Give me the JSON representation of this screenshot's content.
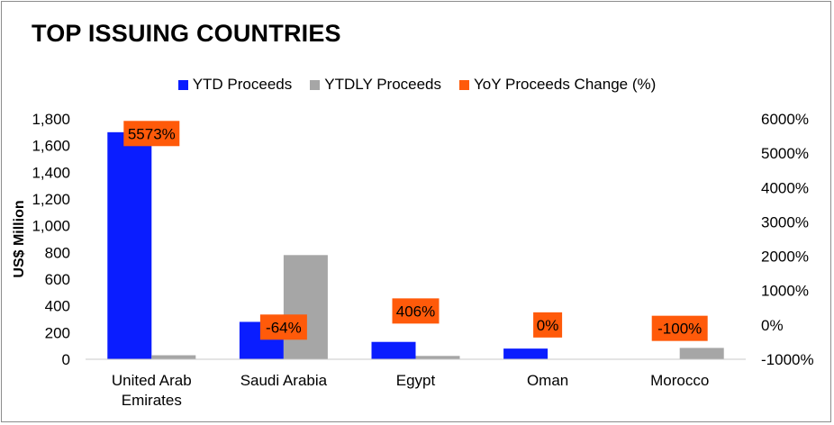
{
  "title": "TOP ISSUING COUNTRIES",
  "legend": [
    {
      "label": "YTD Proceeds",
      "color": "#0a1dff"
    },
    {
      "label": "YTDLY Proceeds",
      "color": "#a6a6a6"
    },
    {
      "label": "YoY Proceeds Change (%)",
      "color": "#ff5a0a"
    }
  ],
  "chart_data": {
    "type": "bar",
    "title": "TOP ISSUING COUNTRIES",
    "ylabel": "US$ Million",
    "ylim": [
      0,
      1800
    ],
    "y_ticks": [
      "0",
      "200",
      "400",
      "600",
      "800",
      "1,000",
      "1,200",
      "1,400",
      "1,600",
      "1,800"
    ],
    "y2lim": [
      -1000,
      6000
    ],
    "y2_ticks": [
      "-1000%",
      "0%",
      "1000%",
      "2000%",
      "3000%",
      "4000%",
      "5000%",
      "6000%"
    ],
    "categories": [
      [
        "United Arab",
        "Emirates"
      ],
      [
        "Saudi Arabia"
      ],
      [
        "Egypt"
      ],
      [
        "Oman"
      ],
      [
        "Morocco"
      ]
    ],
    "series": [
      {
        "name": "YTD Proceeds",
        "values": [
          1700,
          280,
          130,
          80,
          0
        ]
      },
      {
        "name": "YTDLY Proceeds",
        "values": [
          30,
          780,
          25,
          0,
          85
        ]
      },
      {
        "name": "YoY Proceeds Change (%)",
        "values": [
          5573,
          -64,
          406,
          0,
          -100
        ],
        "labels": [
          "5573%",
          "-64%",
          "406%",
          "0%",
          "-100%"
        ]
      }
    ],
    "grid": false,
    "legend_position": "top"
  }
}
